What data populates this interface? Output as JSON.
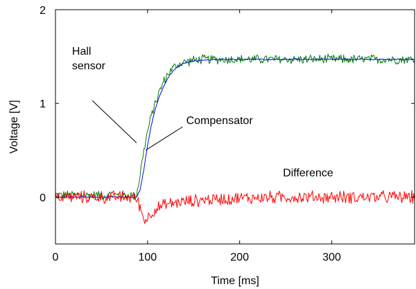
{
  "chart_data": {
    "type": "line",
    "title": "",
    "xlabel": "Time [ms]",
    "ylabel": "Voltage [V]",
    "xlim": [
      0,
      390
    ],
    "ylim": [
      -0.5,
      2
    ],
    "xticks": [
      0,
      100,
      200,
      300
    ],
    "yticks": [
      0,
      1,
      2
    ],
    "grid": false,
    "legend": "none",
    "series": [
      {
        "key": "hall",
        "color": "#007f00",
        "noise": 0.045,
        "x": [
          0,
          20,
          40,
          60,
          80,
          88,
          92,
          96,
          100,
          104,
          108,
          112,
          116,
          120,
          124,
          128,
          132,
          140,
          150,
          160,
          180,
          200,
          250,
          300,
          350,
          390
        ],
        "y": [
          0.02,
          0.02,
          0.02,
          0.02,
          0.02,
          0.02,
          0.25,
          0.5,
          0.7,
          0.86,
          1.0,
          1.1,
          1.2,
          1.28,
          1.34,
          1.38,
          1.41,
          1.44,
          1.46,
          1.47,
          1.47,
          1.47,
          1.47,
          1.47,
          1.47,
          1.47
        ]
      },
      {
        "key": "compensator",
        "color": "#0000ff",
        "noise": 0.006,
        "x": [
          0,
          20,
          40,
          60,
          80,
          88,
          92,
          96,
          100,
          104,
          108,
          112,
          116,
          120,
          124,
          128,
          132,
          140,
          150,
          160,
          180,
          200,
          250,
          300,
          350,
          390
        ],
        "y": [
          0.0,
          0.0,
          0.0,
          0.0,
          0.0,
          0.0,
          0.08,
          0.3,
          0.55,
          0.76,
          0.93,
          1.05,
          1.15,
          1.23,
          1.3,
          1.35,
          1.39,
          1.43,
          1.45,
          1.46,
          1.47,
          1.47,
          1.47,
          1.47,
          1.47,
          1.47
        ]
      },
      {
        "key": "difference",
        "color": "#ff0000",
        "noise": 0.06,
        "x": [
          0,
          20,
          40,
          60,
          80,
          88,
          92,
          96,
          100,
          105,
          110,
          120,
          130,
          140,
          150,
          160,
          180,
          200,
          250,
          300,
          350,
          390
        ],
        "y": [
          0.0,
          0.0,
          0.0,
          0.0,
          0.0,
          -0.02,
          -0.1,
          -0.25,
          -0.22,
          -0.16,
          -0.12,
          -0.08,
          -0.06,
          -0.05,
          -0.04,
          -0.03,
          -0.02,
          -0.01,
          0.0,
          0.0,
          0.0,
          0.0
        ]
      }
    ],
    "annotations": [
      {
        "key": "hall",
        "lines": [
          "Hall",
          "sensor"
        ],
        "x": 18,
        "y": 1.52,
        "pointer": [
          [
            40,
            1.03
          ],
          [
            88,
            0.58
          ]
        ]
      },
      {
        "key": "compensator",
        "lines": [
          "Compensator"
        ],
        "x": 142,
        "y": 0.78,
        "pointer": [
          [
            138,
            0.75
          ],
          [
            98,
            0.5
          ]
        ]
      },
      {
        "key": "difference",
        "lines": [
          "Difference"
        ],
        "x": 247,
        "y": 0.22,
        "pointer": null
      }
    ]
  }
}
